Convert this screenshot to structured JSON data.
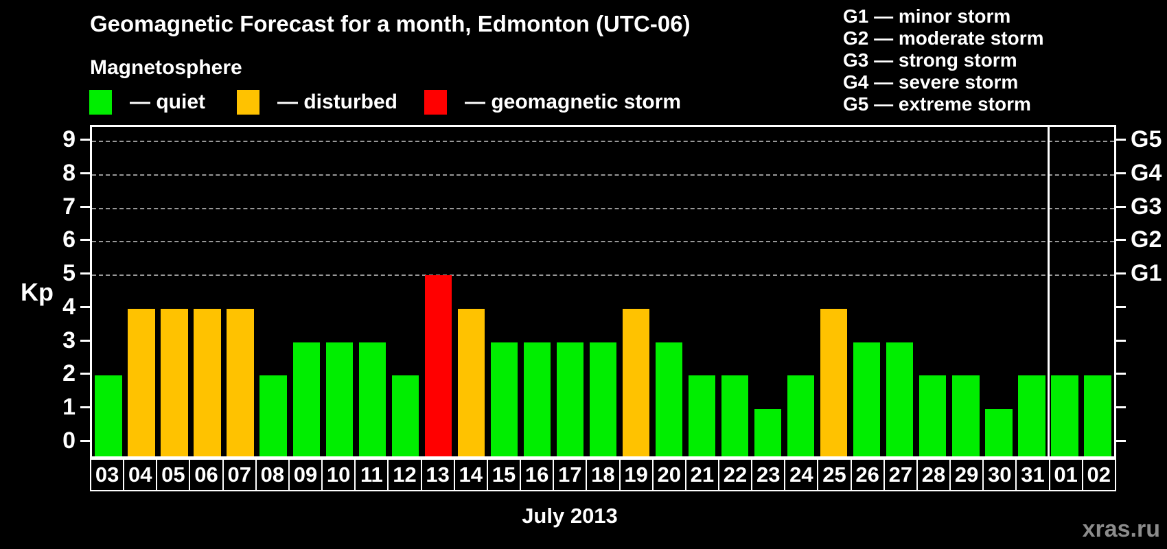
{
  "title": "Geomagnetic Forecast for a month, Edmonton (UTC-06)",
  "subtitle": "Magnetosphere",
  "legend": {
    "items": [
      {
        "status": "quiet",
        "label": "— quiet",
        "color": "#00ee00"
      },
      {
        "status": "disturbed",
        "label": "— disturbed",
        "color": "#ffc200"
      },
      {
        "status": "storm",
        "label": "— geomagnetic storm",
        "color": "#ff0000"
      }
    ]
  },
  "g_scale_legend": [
    "G1 — minor storm",
    "G2 — moderate storm",
    "G3 — strong storm",
    "G4 — severe storm",
    "G5 — extreme storm"
  ],
  "axes": {
    "y_left_label": "Kp",
    "y_ticks": [
      0,
      1,
      2,
      3,
      4,
      5,
      6,
      7,
      8,
      9
    ],
    "y_right_labels": [
      {
        "label": "G1",
        "kp": 5
      },
      {
        "label": "G2",
        "kp": 6
      },
      {
        "label": "G3",
        "kp": 7
      },
      {
        "label": "G4",
        "kp": 8
      },
      {
        "label": "G5",
        "kp": 9
      }
    ],
    "x_title": "July 2013"
  },
  "watermark": "xras.ru",
  "chart_data": {
    "type": "bar",
    "title": "Geomagnetic Forecast for a month, Edmonton (UTC-06)",
    "ylabel": "Kp",
    "xlabel": "July 2013",
    "ylim": [
      0,
      9
    ],
    "grid": "dashed horizontal at Kp 5-9 (G1-G5)",
    "gridlines_at": [
      5,
      6,
      7,
      8,
      9
    ],
    "categories": [
      "03",
      "04",
      "05",
      "06",
      "07",
      "08",
      "09",
      "10",
      "11",
      "12",
      "13",
      "14",
      "15",
      "16",
      "17",
      "18",
      "19",
      "20",
      "21",
      "22",
      "23",
      "24",
      "25",
      "26",
      "27",
      "28",
      "29",
      "30",
      "31",
      "01",
      "02"
    ],
    "values": [
      2,
      4,
      4,
      4,
      4,
      2,
      3,
      3,
      3,
      2,
      5,
      4,
      3,
      3,
      3,
      3,
      4,
      3,
      2,
      2,
      1,
      2,
      4,
      3,
      3,
      2,
      2,
      1,
      2,
      2,
      2
    ],
    "statuses": [
      "quiet",
      "disturbed",
      "disturbed",
      "disturbed",
      "disturbed",
      "quiet",
      "quiet",
      "quiet",
      "quiet",
      "quiet",
      "storm",
      "disturbed",
      "quiet",
      "quiet",
      "quiet",
      "quiet",
      "disturbed",
      "quiet",
      "quiet",
      "quiet",
      "quiet",
      "quiet",
      "disturbed",
      "quiet",
      "quiet",
      "quiet",
      "quiet",
      "quiet",
      "quiet",
      "quiet",
      "quiet"
    ],
    "month_boundary_index": 29,
    "legend_position": "top-left"
  }
}
